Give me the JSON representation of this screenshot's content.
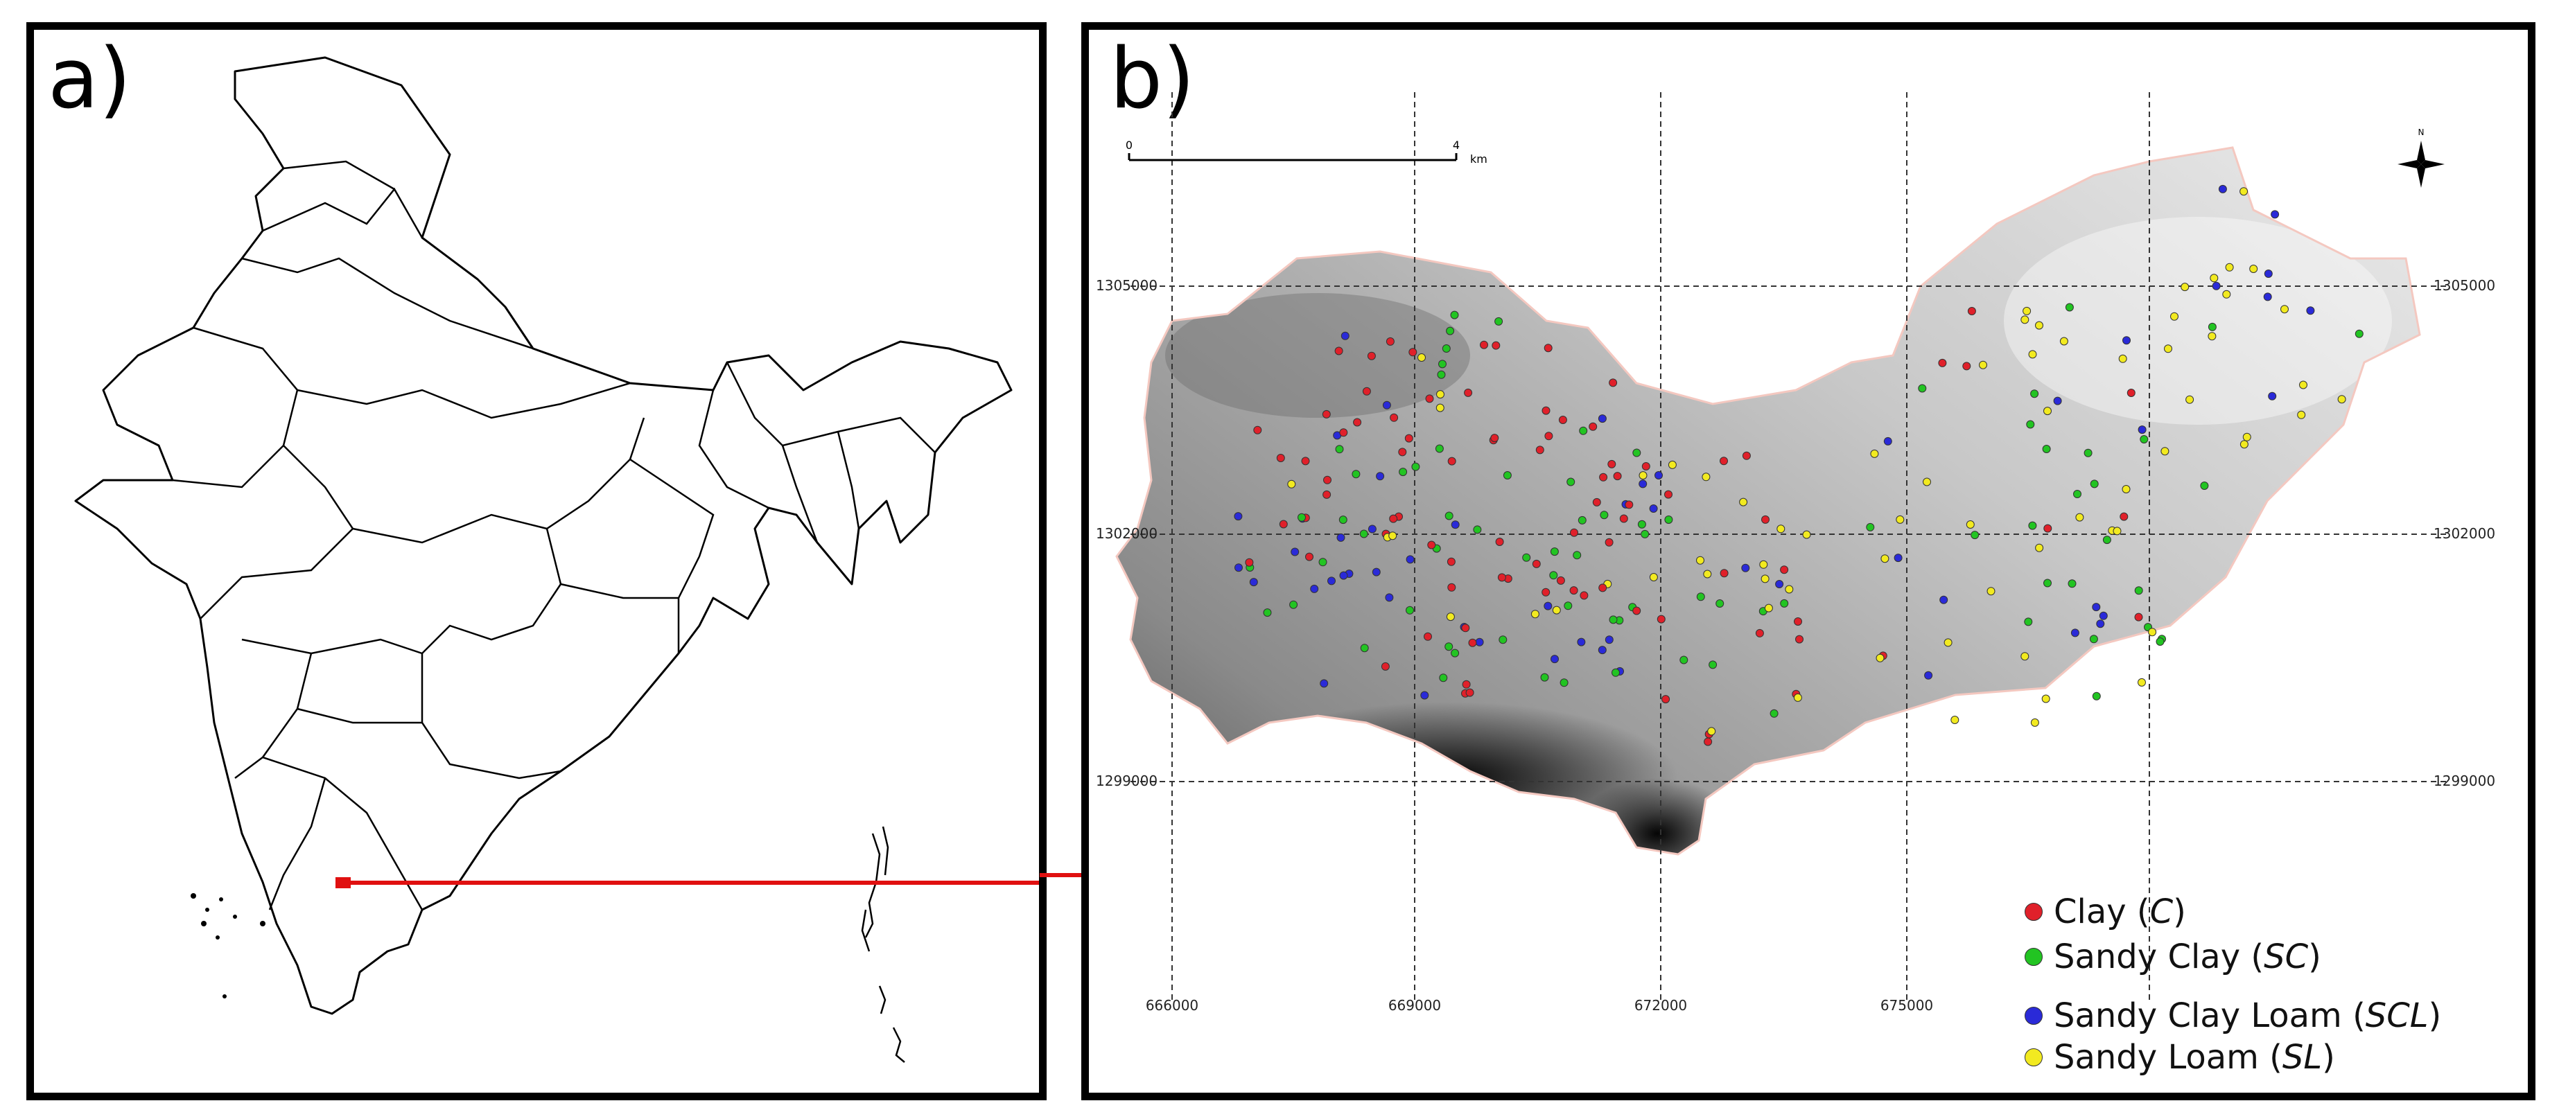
{
  "panel_a": {
    "label": "a)"
  },
  "panel_b": {
    "label": "b)",
    "scale_bar": {
      "start": "0",
      "end": "4",
      "unit": "km"
    },
    "north_symbol": "N",
    "x_ticks": [
      "666000",
      "669000",
      "672000",
      "675000"
    ],
    "y_ticks": [
      "1305000",
      "1302000",
      "1299000"
    ],
    "legend": [
      {
        "name": "Clay",
        "code": "C",
        "color": "#e0202a"
      },
      {
        "name": "Sandy Clay",
        "code": "SC",
        "color": "#22c422"
      },
      {
        "name": "Sandy Clay Loam",
        "code": "SCL",
        "color": "#2a2ad8"
      },
      {
        "name": "Sandy Loam",
        "code": "SL",
        "color": "#f2ea20"
      }
    ]
  },
  "colors": {
    "arrow": "#e01010",
    "frame": "#000000"
  }
}
